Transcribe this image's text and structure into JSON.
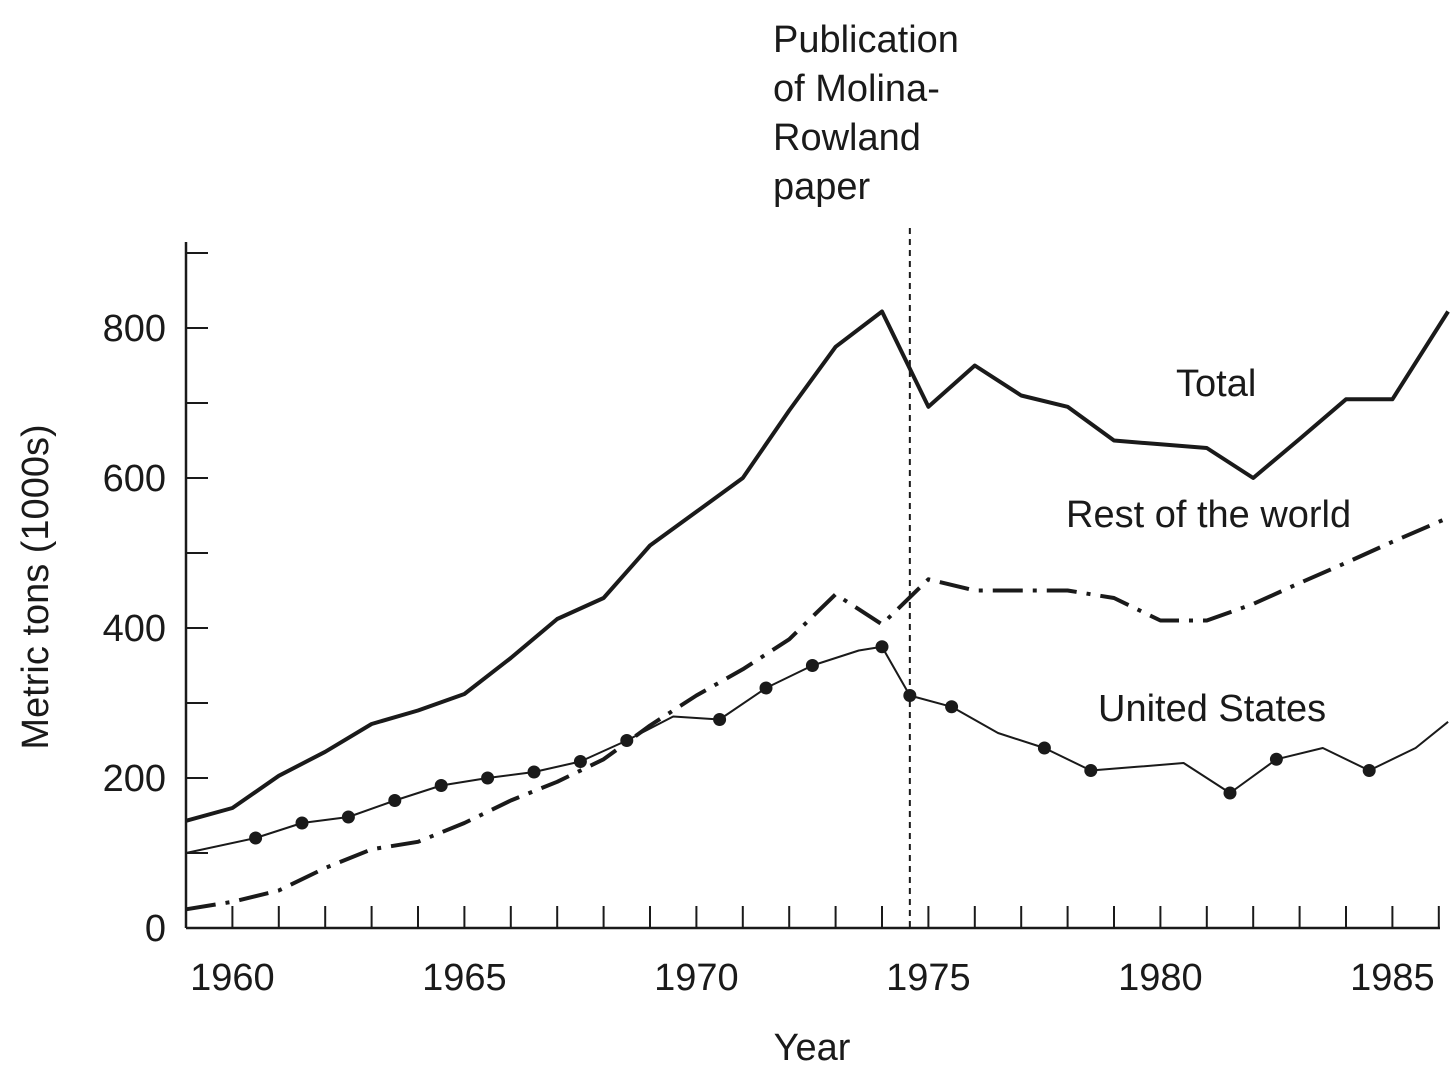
{
  "chart_data": {
    "type": "line",
    "xlabel": "Year",
    "ylabel": "Metric tons (1000s)",
    "xlim": [
      1959,
      1986.2
    ],
    "ylim": [
      0,
      900
    ],
    "x_ticks": [
      1960,
      1965,
      1970,
      1975,
      1980,
      1985
    ],
    "y_ticks": [
      0,
      200,
      400,
      600,
      800
    ],
    "grid": false,
    "annotation": {
      "x": 1974.6,
      "lines": [
        "Publication",
        "of Molina-",
        "Rowland",
        "paper"
      ]
    },
    "series": [
      {
        "name": "Total",
        "style": "solid-thick",
        "x": [
          1959,
          1960,
          1961,
          1962,
          1963,
          1964,
          1965,
          1966,
          1967,
          1968,
          1969,
          1970,
          1971,
          1972,
          1973,
          1974,
          1975,
          1976,
          1977,
          1978,
          1979,
          1980,
          1981,
          1982,
          1983,
          1984,
          1985,
          1986.2
        ],
        "y": [
          143,
          160,
          203,
          235,
          272,
          290,
          312,
          360,
          412,
          440,
          510,
          555,
          600,
          690,
          775,
          822,
          695,
          750,
          710,
          695,
          650,
          645,
          640,
          600,
          652,
          705,
          705,
          822
        ]
      },
      {
        "name": "Rest of the world",
        "style": "dash-dot",
        "x": [
          1959,
          1960,
          1961,
          1962,
          1963,
          1964,
          1965,
          1966,
          1967,
          1968,
          1969,
          1970,
          1971,
          1972,
          1973,
          1974,
          1975,
          1976,
          1977,
          1978,
          1979,
          1980,
          1981,
          1982,
          1983,
          1984,
          1985,
          1986.2
        ],
        "y": [
          25,
          35,
          50,
          80,
          105,
          115,
          140,
          170,
          195,
          225,
          270,
          310,
          345,
          385,
          445,
          405,
          465,
          450,
          450,
          450,
          440,
          410,
          410,
          432,
          460,
          487,
          515,
          547
        ]
      },
      {
        "name": "United States",
        "style": "solid-thin-dots",
        "x": [
          1959,
          1960.5,
          1961.5,
          1962.5,
          1963.5,
          1964.5,
          1965.5,
          1966.5,
          1967.5,
          1968.5,
          1969.5,
          1970.5,
          1971.5,
          1972.5,
          1973.5,
          1974,
          1974.6,
          1975.5,
          1976.5,
          1977.5,
          1978.5,
          1979.5,
          1980.5,
          1981.5,
          1982.5,
          1983.5,
          1984.5,
          1985.5,
          1986.2
        ],
        "y": [
          100,
          120,
          140,
          148,
          170,
          190,
          200,
          208,
          222,
          250,
          282,
          278,
          320,
          350,
          370,
          375,
          310,
          295,
          260,
          240,
          210,
          215,
          220,
          180,
          225,
          240,
          210,
          240,
          275
        ]
      }
    ]
  },
  "labels": {
    "total": "Total",
    "rest_of_world": "Rest of the world",
    "united_states": "United States",
    "ylabel": "Metric tons (1000s)",
    "xlabel": "Year",
    "annotation_lines": [
      "Publication",
      "of Molina-",
      "Rowland",
      "paper"
    ]
  }
}
